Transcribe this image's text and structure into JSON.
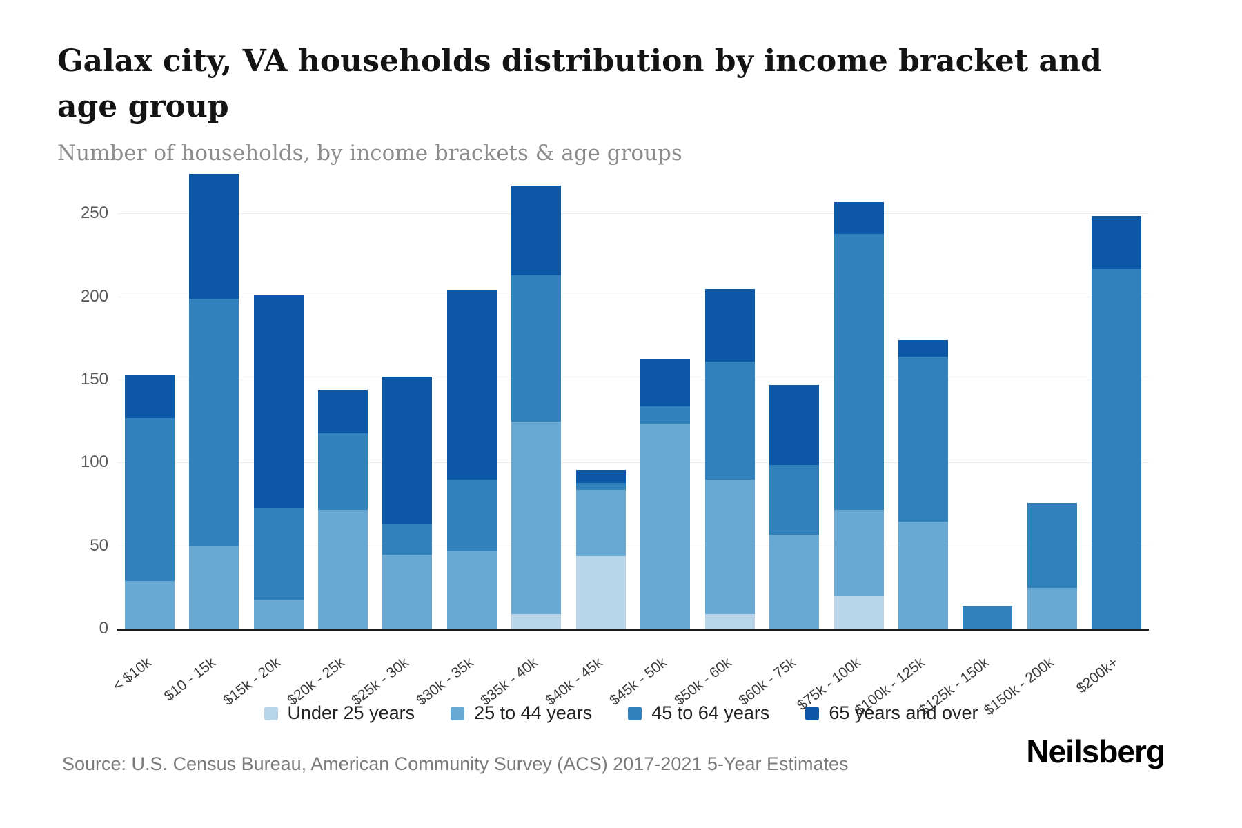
{
  "header": {
    "title": "Galax city, VA households distribution by income bracket and age group",
    "subtitle": "Number of households, by income brackets & age groups"
  },
  "footer": {
    "source": "Source: U.S. Census Bureau, American Community Survey (ACS) 2017-2021 5-Year Estimates",
    "brand": "Neilsberg"
  },
  "colors": {
    "under_25": "#b9d5ea",
    "age_25_44": "#69aad5",
    "age_45_64": "#3181bd",
    "age_65_over": "#0d57a7",
    "gridline": "#ebebeb",
    "axis": "#1a1a1a"
  },
  "chart_data": {
    "type": "bar",
    "stacked": true,
    "title": "Galax city, VA households distribution by income bracket and age group",
    "xlabel": "",
    "ylabel": "Number of households",
    "categories": [
      "< $10k",
      "$10 - 15k",
      "$15k - 20k",
      "$20k - 25k",
      "$25k - 30k",
      "$30k - 35k",
      "$35k - 40k",
      "$40k - 45k",
      "$45k - 50k",
      "$50k - 60k",
      "$60k - 75k",
      "$75k - 100k",
      "$100k - 125k",
      "$125k - 150k",
      "$150k - 200k",
      "$200k+"
    ],
    "series": [
      {
        "name": "Under 25 years",
        "color": "#b9d5ea",
        "values": [
          0,
          0,
          0,
          0,
          0,
          0,
          9,
          44,
          0,
          9,
          0,
          20,
          0,
          0,
          0,
          0
        ]
      },
      {
        "name": "25 to 44 years",
        "color": "#69aad5",
        "values": [
          29,
          50,
          18,
          72,
          45,
          47,
          116,
          40,
          124,
          81,
          57,
          52,
          65,
          0,
          25,
          0
        ]
      },
      {
        "name": "45 to 64 years",
        "color": "#3181bd",
        "values": [
          98,
          149,
          55,
          46,
          18,
          43,
          88,
          4,
          10,
          71,
          42,
          166,
          99,
          14,
          51,
          217
        ]
      },
      {
        "name": "65 years and over",
        "color": "#0d57a7",
        "values": [
          26,
          75,
          128,
          26,
          89,
          114,
          54,
          8,
          29,
          44,
          48,
          19,
          10,
          0,
          0,
          32
        ]
      }
    ],
    "totals": [
      153,
      274,
      201,
      144,
      152,
      204,
      267,
      96,
      163,
      205,
      147,
      257,
      174,
      14,
      76,
      249
    ],
    "yticks": [
      0,
      50,
      100,
      150,
      200,
      250
    ],
    "ylim": [
      0,
      275
    ],
    "grid": true,
    "legend_position": "bottom"
  }
}
